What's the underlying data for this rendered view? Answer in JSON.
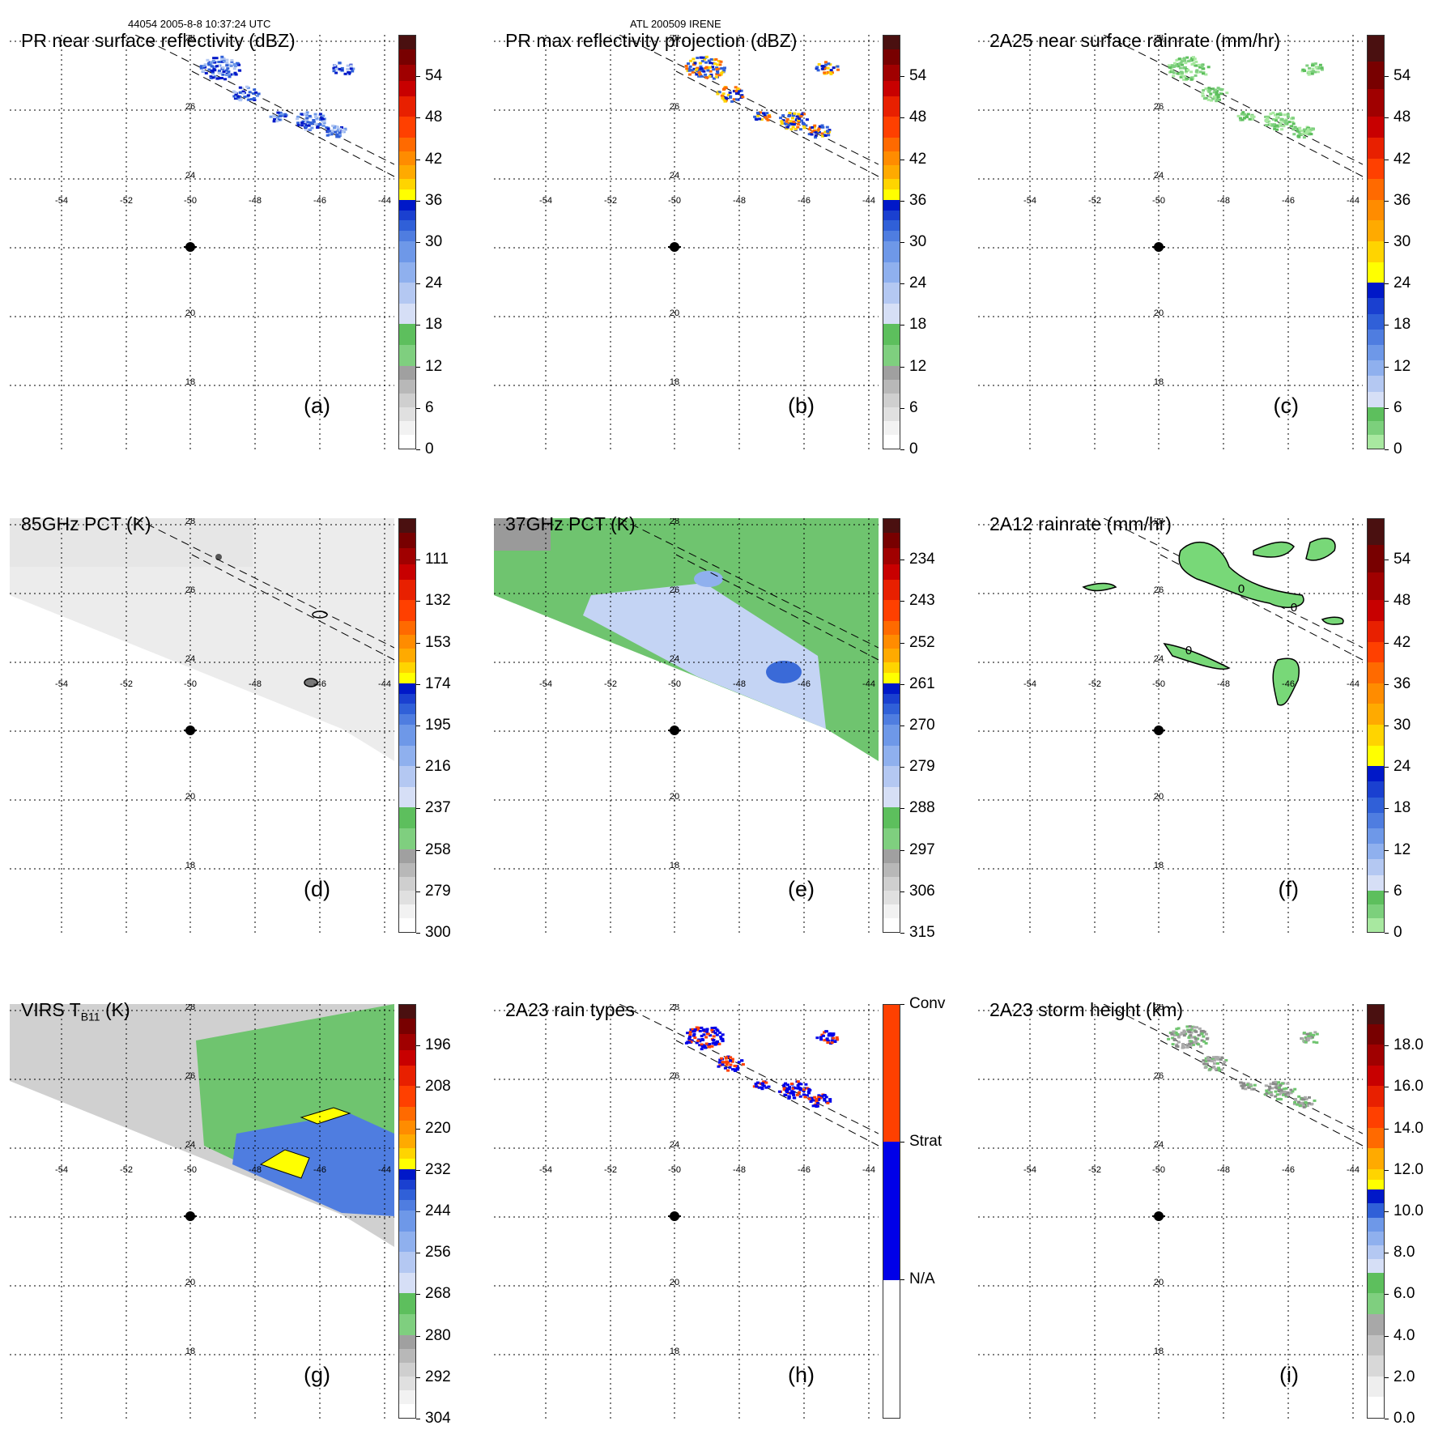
{
  "header": {
    "orbit_time": "44054 2005-8-8 10:37:24 UTC",
    "storm": "ATL 200509 IRENE"
  },
  "map_grid": {
    "lon_labels": [
      "-54",
      "-52",
      "-50",
      "-48",
      "-46",
      "-44"
    ],
    "lat_labels": [
      "28",
      "26",
      "24",
      "20",
      "18"
    ]
  },
  "chart_data": [
    {
      "type": "heatmap",
      "panel": "(a)",
      "title": "PR near surface reflectivity (dBZ)",
      "colorbar": {
        "ticks": [
          "54",
          "48",
          "42",
          "36",
          "30",
          "24",
          "18",
          "12",
          "6",
          "0"
        ],
        "range": [
          0,
          60
        ],
        "unit": "dBZ"
      }
    },
    {
      "type": "heatmap",
      "panel": "(b)",
      "title": "PR max reflectivity projection (dBZ)",
      "colorbar": {
        "ticks": [
          "54",
          "48",
          "42",
          "36",
          "30",
          "24",
          "18",
          "12",
          "6",
          "0"
        ],
        "range": [
          0,
          60
        ],
        "unit": "dBZ"
      }
    },
    {
      "type": "heatmap",
      "panel": "(c)",
      "title": "2A25 near surface rainrate (mm/hr)",
      "colorbar": {
        "ticks": [
          "54",
          "48",
          "42",
          "36",
          "30",
          "24",
          "18",
          "12",
          "6",
          "0"
        ],
        "range": [
          0,
          60
        ],
        "unit": "mm/hr"
      }
    },
    {
      "type": "heatmap",
      "panel": "(d)",
      "title": "85GHz PCT (K)",
      "colorbar": {
        "ticks": [
          "111",
          "132",
          "153",
          "174",
          "195",
          "216",
          "237",
          "258",
          "279",
          "300"
        ],
        "range": [
          90,
          300
        ],
        "unit": "K"
      }
    },
    {
      "type": "heatmap",
      "panel": "(e)",
      "title": "37GHz PCT (K)",
      "colorbar": {
        "ticks": [
          "234",
          "243",
          "252",
          "261",
          "270",
          "279",
          "288",
          "297",
          "306",
          "315"
        ],
        "range": [
          225,
          315
        ],
        "unit": "K"
      }
    },
    {
      "type": "heatmap",
      "panel": "(f)",
      "title": "2A12 rainrate (mm/hr)",
      "colorbar": {
        "ticks": [
          "54",
          "48",
          "42",
          "36",
          "30",
          "24",
          "18",
          "12",
          "6",
          "0"
        ],
        "range": [
          0,
          60
        ],
        "unit": "mm/hr"
      },
      "contour_labels": [
        "0",
        "0",
        "0"
      ]
    },
    {
      "type": "heatmap",
      "panel": "(g)",
      "title_main": "VIRS T",
      "title_sub": "B11",
      "title_unit": " (K)",
      "colorbar": {
        "ticks": [
          "196",
          "208",
          "220",
          "232",
          "244",
          "256",
          "268",
          "280",
          "292",
          "304"
        ],
        "range": [
          184,
          304
        ],
        "unit": "K"
      }
    },
    {
      "type": "heatmap",
      "panel": "(h)",
      "title": "2A23 rain types",
      "colorbar": {
        "ticks": [
          "Conv",
          "Strat",
          "N/A"
        ],
        "categories": [
          "N/A",
          "Strat",
          "Conv"
        ]
      }
    },
    {
      "type": "heatmap",
      "panel": "(i)",
      "title": "2A23 storm height (km)",
      "colorbar": {
        "ticks": [
          "18.0",
          "16.0",
          "14.0",
          "12.0",
          "10.0",
          "8.0",
          "6.0",
          "4.0",
          "2.0",
          "0.0"
        ],
        "range": [
          0,
          20
        ],
        "unit": "km"
      }
    }
  ]
}
